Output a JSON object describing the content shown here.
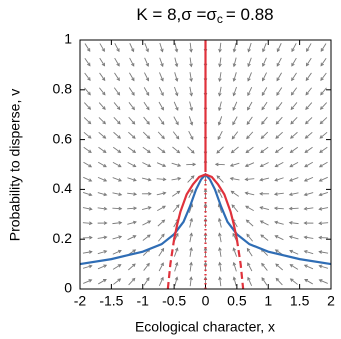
{
  "chart_data": {
    "type": "line",
    "title": [
      "K = 8,σ =σ",
      "c",
      "= 0.88"
    ],
    "x_label": "Ecological character, x",
    "y_label": "Probability to disperse, v",
    "xlim": [
      -2,
      2
    ],
    "ylim": [
      0,
      1
    ],
    "xticks": [
      -2,
      -1.5,
      -1,
      -0.5,
      0,
      0.5,
      1,
      1.5,
      2
    ],
    "yticks": [
      0,
      0.2,
      0.4,
      0.6,
      0.8,
      1
    ],
    "series": [
      {
        "color": "#2f6db5",
        "style": "solid",
        "x": [
          -2,
          -1.5,
          -1,
          -0.7,
          -0.5,
          -0.35,
          -0.25,
          -0.15,
          -0.07,
          0,
          0.07,
          0.15,
          0.25,
          0.35,
          0.5,
          0.7,
          1,
          1.5,
          2
        ],
        "values": [
          0.1,
          0.12,
          0.15,
          0.18,
          0.22,
          0.27,
          0.33,
          0.4,
          0.44,
          0.46,
          0.44,
          0.4,
          0.33,
          0.27,
          0.22,
          0.18,
          0.15,
          0.12,
          0.1
        ]
      },
      {
        "color": "#e0323c",
        "style": "solid",
        "x": [
          -0.5,
          -0.45,
          -0.4,
          -0.3,
          -0.2,
          -0.1,
          0,
          0.1,
          0.2,
          0.3,
          0.4,
          0.45,
          0.5
        ],
        "values": [
          0.2,
          0.26,
          0.31,
          0.38,
          0.42,
          0.45,
          0.46,
          0.45,
          0.42,
          0.38,
          0.31,
          0.26,
          0.2
        ]
      },
      {
        "color": "#e0323c",
        "style": "dashed",
        "x": [
          -0.6,
          -0.56,
          -0.5
        ],
        "values": [
          0,
          0.1,
          0.2
        ]
      },
      {
        "color": "#e0323c",
        "style": "dashed",
        "x": [
          0.5,
          0.56,
          0.6
        ],
        "values": [
          0.2,
          0.1,
          0
        ]
      },
      {
        "color": "#e0323c",
        "style": "solid",
        "x": [
          0,
          0
        ],
        "values": [
          0.47,
          1
        ]
      },
      {
        "color": "#e0323c",
        "style": "dotted",
        "x": [
          0,
          0
        ],
        "values": [
          0,
          0.44
        ]
      }
    ]
  }
}
